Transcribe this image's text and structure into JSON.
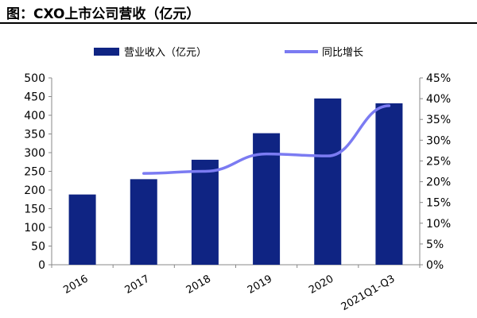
{
  "title": "图：CXO上市公司营收（亿元）",
  "chart_data": {
    "type": "bar",
    "categories": [
      "2016",
      "2017",
      "2018",
      "2019",
      "2020",
      "2021Q1-Q3"
    ],
    "series": [
      {
        "name": "营业收入（亿元）",
        "type": "bar",
        "axis": "left",
        "color": "#0f2483",
        "values": [
          188,
          229,
          281,
          352,
          445,
          432
        ]
      },
      {
        "name": "同比增长",
        "type": "line",
        "axis": "right",
        "color": "#7b7bf2",
        "values": [
          null,
          0.22,
          0.225,
          0.267,
          0.262,
          0.383
        ]
      }
    ],
    "left_axis": {
      "min": 0,
      "max": 500,
      "step": 50,
      "tick_labels": [
        "0",
        "50",
        "100",
        "150",
        "200",
        "250",
        "300",
        "350",
        "400",
        "450",
        "500"
      ]
    },
    "right_axis": {
      "min": 0,
      "max": 0.45,
      "step": 0.05,
      "tick_labels": [
        "0%",
        "5%",
        "10%",
        "15%",
        "20%",
        "25%",
        "30%",
        "35%",
        "40%",
        "45%"
      ]
    },
    "legend_position": "top"
  }
}
